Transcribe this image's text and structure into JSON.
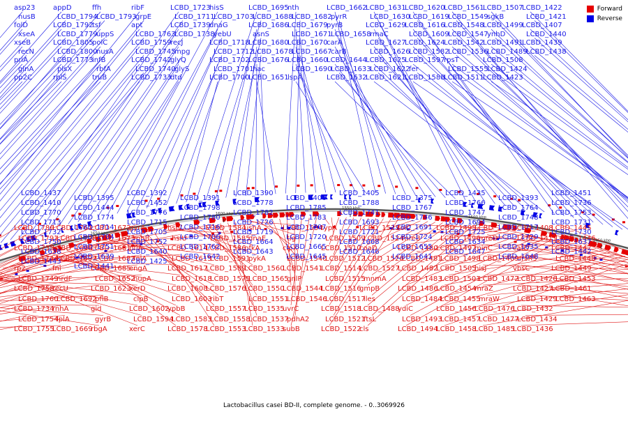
{
  "legend": [
    {
      "label": "Forward",
      "color": "#e60000"
    },
    {
      "label": "Reverse",
      "color": "#0000e6"
    }
  ],
  "footer": "Lactobacillus casei BD-II, complete genome. - 0..3069926",
  "scale_ticks": [
    "1800 kbp",
    "1750 kbp",
    "1700 kbp",
    "1650 kbp",
    "1600 kbp",
    "1550 kbp",
    "1500 kbp",
    "1450 kbp",
    "1400 kbp",
    "1350 kbp"
  ],
  "reverse_genes": [
    "asp23",
    "nusB",
    "folD",
    "xseA",
    "xseB",
    "recN",
    "priA",
    "glnA",
    "pp2C",
    "appD",
    "LCBD_1794",
    "LCBD_1792",
    "LCBD_1779",
    "LCBD_1805",
    "LCBD_1800",
    "LCBD_1773",
    "plsX",
    "rplS",
    "ffh",
    "LCBD_1793",
    "tsf",
    "uppS",
    "polC",
    "nusA",
    "infB",
    "rbfA",
    "truB",
    "ribF",
    "grpE",
    "apt",
    "LCBD_1763",
    "LCBD_1759",
    "LCBD_1745",
    "LCBD_1742",
    "LCBD_1740",
    "LCBD_1733",
    "LCBD_1723",
    "LCBD_1711",
    "LCBD_1739",
    "LCBD_1738",
    "recJ",
    "mpg",
    "glyQ",
    "glyS",
    "dtd",
    "hisS",
    "LCBD_1703",
    "dnaG",
    "yebU",
    "LCBD_1718",
    "LCBD_1712",
    "LCBD_1702",
    "LCBD_1701",
    "LCBD_1700",
    "LCBD_1695",
    "LCBD_1688",
    "LCBD_1686",
    "asnS",
    "LCBD_1680",
    "LCBD_1678",
    "LCBD_1676",
    "hac",
    "LCBD_1651",
    "nth",
    "LCBD_1682",
    "LCBD_1679",
    "LCBD_1671",
    "LCBD_1670",
    "LCBD_1667",
    "LCBD_1660",
    "LCBD_1690",
    "lspA",
    "LCBD_1662",
    "pyrR",
    "pyrB",
    "LCBD_1658",
    "carA",
    "carB",
    "LCBD_1644",
    "LCBD_1633",
    "LCBD_1632",
    "LCBD_1631",
    "LCBD_1630",
    "LCBD_1629",
    "rmaC",
    "LCBD_1627",
    "LCBD_1626",
    "LCBD_1625",
    "LCBD_1622",
    "LCBD_1621",
    "LCBD_1620",
    "LCBD_1619",
    "LCBD_1616",
    "LCBD_1609",
    "LCBD_1624",
    "LCBD_1582",
    "LCBD_1597",
    "fer",
    "LCBD_1588",
    "LCBD_1561",
    "LCBD_1549",
    "LCBD_1548",
    "LCBD_1547",
    "LCBD_1542",
    "LCBD_1536",
    "rpsT",
    "LCBD_1555",
    "LCBD_1511",
    "LCBD_1507",
    "sgkB",
    "LCBD_1499",
    "ynhD",
    "LCBD_1491",
    "LCBD_1489",
    "LCBD_1508",
    "LCBD_1424",
    "LCBD_1423",
    "LCBD_1422",
    "LCBD_1421",
    "LCBD_1407",
    "LCBD_1440",
    "LCBD_1439",
    "LCBD_1438",
    "LCBD_1437",
    "LCBD_1395",
    "LCBD_1392",
    "LCBD_1391",
    "LCBD_1390",
    "LCBD_1406",
    "LCBD_1405",
    "LCBD_1375",
    "LCBD_1435",
    "LCBD_1393",
    "LCBD_1451",
    "LCBD_1410",
    "LCBD_1444",
    "LCBD_1452",
    "LCBD_1798",
    "LCBD_1778",
    "LCBD_1785",
    "LCBD_1788",
    "LCBD_1767",
    "LCBD_1766",
    "LCBD_1764",
    "LCBD_1736",
    "LCBD_1770",
    "LCBD_1774",
    "LCBD_1776",
    "LCBD_1780",
    "LCBD_1782",
    "LCBD_1783",
    "LCBD_1741",
    "LCBD_1746",
    "LCBD_1747",
    "LCBD_1748",
    "LCBD_1753",
    "LCBD_1713",
    "LCBD_1714",
    "LCBD_1715",
    "LCBD_1716",
    "LCBD_1726",
    "LCBD_1707",
    "LCBD_1693",
    "LCBD_1691",
    "LCBD_1694",
    "LCBD_1717",
    "LCBD_1731",
    "LCBD_1732",
    "LCBD_1704",
    "LCBD_1705",
    "LCBD_1706",
    "LCBD_1719",
    "LCBD_1720",
    "LCBD_1721",
    "LCBD_1724",
    "LCBD_1725",
    "LCBD_1729",
    "LCBD_1730",
    "LCBD_1750",
    "LCBD_1751",
    "LCBD_1752",
    "LCBD_1762",
    "LCBD_1664",
    "LCBD_1665",
    "LCBD_1668",
    "LCBD_1655",
    "LCBD_1634",
    "LCBD_1635",
    "LCBD_1637",
    "LCBD_1638",
    "LCBD_1639",
    "LCBD_1640",
    "LCBD_1642",
    "LCBD_1643",
    "LCBD_1645",
    "LCBD_1646",
    "LCBD_1641",
    "LCBD_1647",
    "LCBD_1648",
    "LCBD_1442",
    "LCBD_1443",
    "LCBD_1441",
    "LCBD_1425"
  ],
  "forward_genes": [
    "LCBD_1786",
    "LCBD_1791",
    "LCBD_1735",
    "LCBD_1744",
    "rp2",
    "LCBD_1749",
    "LCBD_1758",
    "LCBD_1760",
    "LCBD_1734",
    "LCBD_1754",
    "LCBD_1755",
    "LCBD_1761",
    "LCBD_1728",
    "LCBD_1696",
    "LCBD_1697",
    "fni",
    "nrdF",
    "recU",
    "LCBD_1692",
    "rnhA",
    "lplA",
    "LCBD_1669",
    "LCBD_1672",
    "LCBD_1673",
    "LCBD_1681",
    "LCBD_1683",
    "LCBD_1685",
    "LCBD_1652",
    "LCBD_1623",
    "pflB",
    "gid",
    "gyrB",
    "rbgA",
    "gyrA",
    "rnhB",
    "pflA",
    "folA",
    "engA",
    "hupA",
    "xerD",
    "clpB",
    "LCBD_1602",
    "LCBD_1594",
    "xerC",
    "hslV",
    "hslU",
    "LCBD_1614",
    "LCBD_1615",
    "LCBD_1617",
    "LCBD_1618",
    "LCBD_1608",
    "LCBD_1603",
    "ypbB",
    "LCBD_1583",
    "LCBD_1578",
    "LCBD_1584",
    "LCBD_1585",
    "LCBD_1586",
    "LCBD_1591",
    "LCBD_1589",
    "LCBD_1575",
    "LCBD_1576",
    "ribT",
    "LCBD_1557",
    "LCBD_1558",
    "LCBD_1553",
    "ushA",
    "dnaE",
    "pfkA",
    "pykA",
    "LCBD_1560",
    "LCBD_1565",
    "LCBD_1550",
    "LCBD_1551",
    "LCBD_1535",
    "LCBD_1537",
    "LCBD_1533",
    "LCBD_1534",
    "tig",
    "clpX",
    "LCBD_1540",
    "LCBD_1541",
    "gnlP",
    "LCBD_1544",
    "LCBD_1546",
    "uvrC",
    "pdhA2",
    "subB",
    "typA",
    "LCBD_1509",
    "LCBD_1510",
    "LCBD_1512",
    "LCBD_1514",
    "LCBD_1515",
    "LCBD_1516",
    "LCBD_1517",
    "LCBD_1518",
    "LCBD_1521",
    "LCBD_1522",
    "LCBD_1523",
    "LCBD_1524",
    "coaD",
    "LCBD_1526",
    "LCBD_1527",
    "mnmA",
    "gmpB",
    "iles",
    "LCBD_1488",
    "ftsL",
    "cls",
    "folC",
    "mreB",
    "LCBD_1480",
    "LCBD_1481",
    "LCBD_1482",
    "LCBD_1483",
    "LCBD_1486",
    "LCBD_1484",
    "ydiC",
    "LCBD_1493",
    "LCBD_1494",
    "LCBD_1495",
    "LCBD_1496",
    "LCBD_1497",
    "LCBD_1498",
    "LCBD_1505",
    "LCBD_1501",
    "LCBD_1454",
    "LCBD_1455",
    "LCBD_1456",
    "LCBD_1457",
    "LCBD_1458",
    "LCBD_1460",
    "mreD",
    "minC",
    "LCBD_1469",
    "hisJ",
    "LCBD_1472",
    "mraZ",
    "mraW",
    "LCBD_1476",
    "LCBD_1477",
    "LCBD_1485",
    "LCBD_1408",
    "LCBD_1411",
    "catD",
    "arsR5",
    "vbsC",
    "LCBD_1426",
    "LCBD_1427",
    "LCBD_1429",
    "LCBD_1432",
    "LCBD_1434",
    "LCBD_1436",
    "LCBD_1445",
    "LCBD_1446",
    "LCBD_1447",
    "LCBD_1448",
    "LCBD_1449",
    "LCBD_1453",
    "LCBD_1461",
    "LCBD_1463"
  ]
}
